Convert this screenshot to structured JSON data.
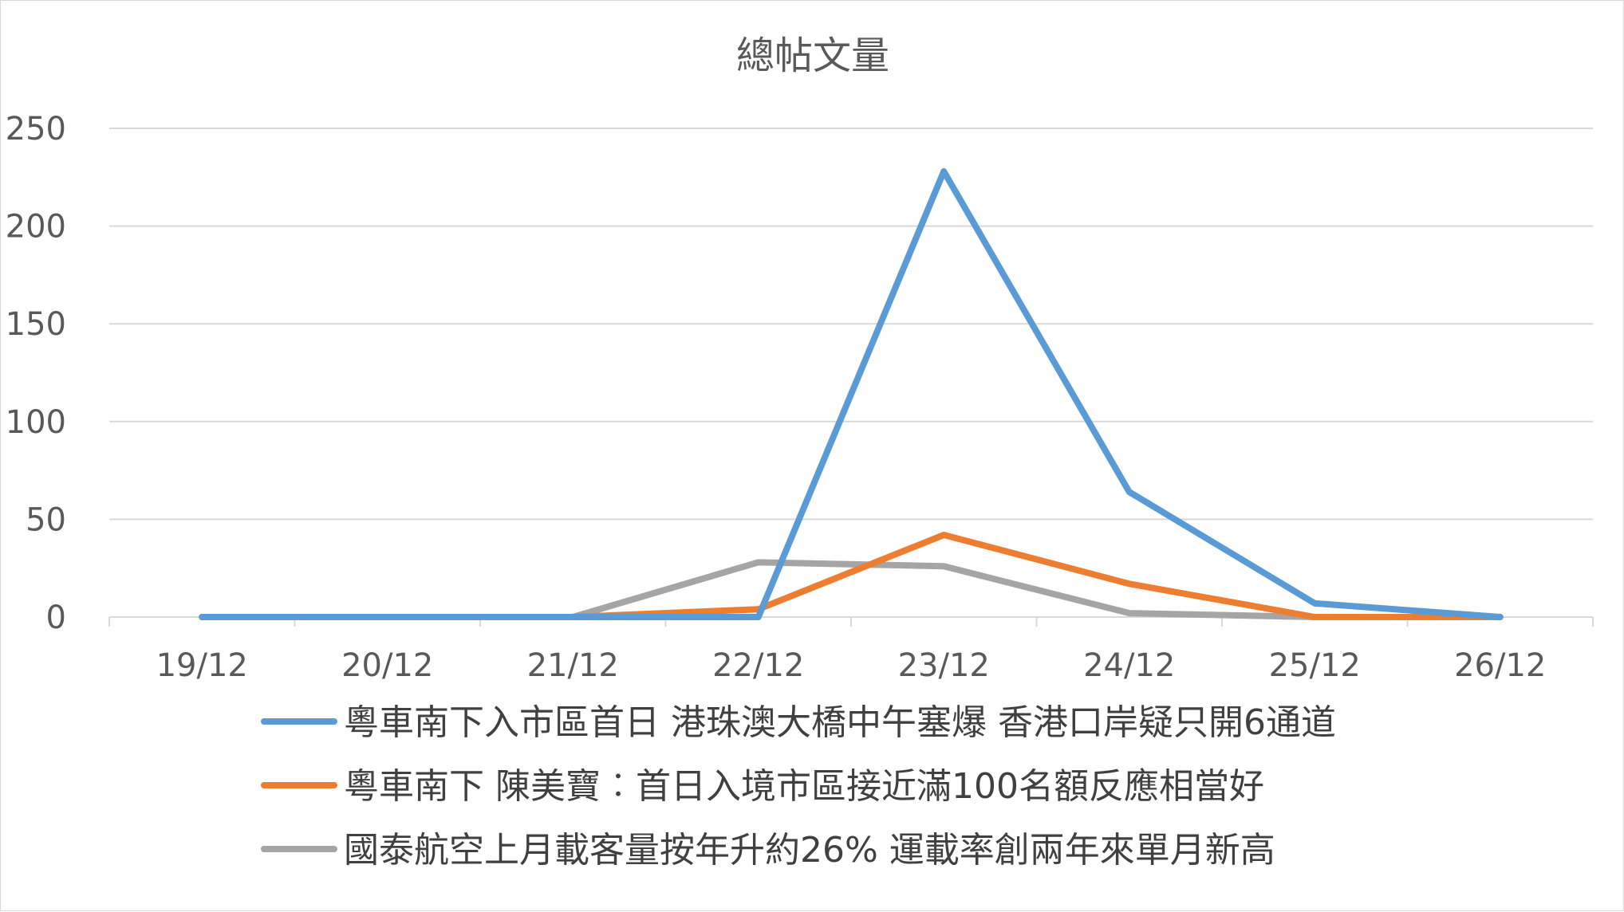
{
  "chart_data": {
    "type": "line",
    "title": "總帖文量",
    "xlabel": "",
    "ylabel": "",
    "categories": [
      "19/12",
      "20/12",
      "21/12",
      "22/12",
      "23/12",
      "24/12",
      "25/12",
      "26/12"
    ],
    "ylim": [
      0,
      250
    ],
    "yticks": [
      0,
      50,
      100,
      150,
      200,
      250
    ],
    "grid": true,
    "legend_position": "bottom",
    "series": [
      {
        "name": "粵車南下入市區首日 港珠澳大橋中午塞爆 香港口岸疑只開6通道",
        "color": "#5b9bd5",
        "values": [
          0,
          0,
          0,
          0,
          228,
          64,
          7,
          0
        ]
      },
      {
        "name": "粵車南下 陳美寶︰首日入境市區接近滿100名額反應相當好",
        "color": "#ed7d31",
        "values": [
          0,
          0,
          0,
          4,
          42,
          17,
          0,
          0
        ]
      },
      {
        "name": "國泰航空上月載客量按年升約26% 運載率創兩年來單月新高",
        "color": "#a5a5a5",
        "values": [
          0,
          0,
          0,
          28,
          26,
          2,
          0,
          0
        ]
      }
    ]
  }
}
